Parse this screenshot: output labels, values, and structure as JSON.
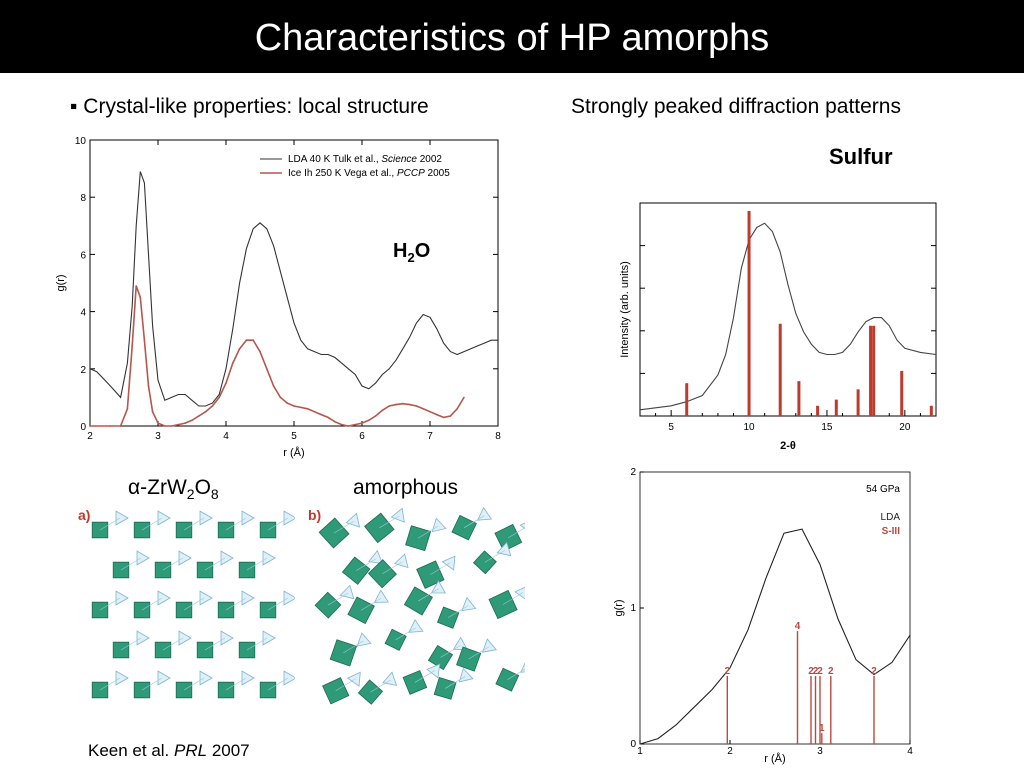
{
  "slide": {
    "title": "Characteristics of HP amorphs",
    "bullet": "▪ Crystal-like properties: local structure",
    "right_heading": "Strongly peaked diffraction patterns",
    "sulfur_label": "Sulfur",
    "h2o": {
      "main": "H",
      "sub": "2",
      "end": "O"
    },
    "zrw2o8": {
      "alpha": "α",
      "p1": "-ZrW",
      "s1": "2",
      "p2": "O",
      "s2": "8"
    },
    "amorphous": "amorphous",
    "citation": {
      "authors": "Keen et al. ",
      "journal": "PRL",
      "year": " 2007"
    },
    "panel_a": "a)",
    "panel_b": "b)"
  },
  "chart_data": [
    {
      "type": "line",
      "xlabel": "r (Å)",
      "ylabel": "g(r)",
      "xlim": [
        2,
        8
      ],
      "ylim": [
        0,
        10
      ],
      "xticks": [
        "2",
        "3",
        "4",
        "5",
        "6",
        "7",
        "8"
      ],
      "yticks": [
        "0",
        "2",
        "4",
        "6",
        "8",
        "10"
      ],
      "legend_placement": "top-right",
      "series": [
        {
          "name": "LDA 40 K Tulk et al., Science 2002",
          "legend_prefix": "LDA 40 K Tulk et al., ",
          "legend_journal": "Science",
          "legend_year": " 2002",
          "color": "#333333",
          "x": [
            2.0,
            2.1,
            2.3,
            2.45,
            2.55,
            2.62,
            2.68,
            2.74,
            2.8,
            2.86,
            2.92,
            3.0,
            3.1,
            3.2,
            3.3,
            3.4,
            3.5,
            3.6,
            3.7,
            3.8,
            3.9,
            4.0,
            4.1,
            4.2,
            4.3,
            4.4,
            4.5,
            4.6,
            4.7,
            4.8,
            4.9,
            5.0,
            5.1,
            5.2,
            5.3,
            5.4,
            5.5,
            5.6,
            5.7,
            5.8,
            5.9,
            6.0,
            6.1,
            6.2,
            6.3,
            6.4,
            6.5,
            6.6,
            6.7,
            6.8,
            6.9,
            7.0,
            7.1,
            7.2,
            7.3,
            7.4,
            7.5,
            7.6,
            7.7,
            7.8,
            7.9,
            8.0
          ],
          "y": [
            2.0,
            1.9,
            1.4,
            1.0,
            2.2,
            4.2,
            7.0,
            8.9,
            8.5,
            6.0,
            3.5,
            1.6,
            0.9,
            1.0,
            1.1,
            1.1,
            0.9,
            0.7,
            0.7,
            0.8,
            1.1,
            2.0,
            3.4,
            5.0,
            6.2,
            6.9,
            7.1,
            6.9,
            6.3,
            5.4,
            4.5,
            3.6,
            3.0,
            2.7,
            2.6,
            2.5,
            2.5,
            2.4,
            2.2,
            2.0,
            1.8,
            1.4,
            1.3,
            1.5,
            1.8,
            2.0,
            2.3,
            2.7,
            3.1,
            3.6,
            3.9,
            3.8,
            3.4,
            2.9,
            2.6,
            2.5,
            2.6,
            2.7,
            2.8,
            2.9,
            3.0,
            3.0
          ]
        },
        {
          "name": "Ice Ih 250 K Vega et al., PCCP 2005",
          "legend_prefix": "Ice Ih 250 K Vega et al., ",
          "legend_journal": "PCCP",
          "legend_year": " 2005",
          "color": "#b5574c",
          "x": [
            2.0,
            2.3,
            2.45,
            2.55,
            2.62,
            2.68,
            2.74,
            2.8,
            2.86,
            2.92,
            3.0,
            3.1,
            3.2,
            3.3,
            3.4,
            3.5,
            3.6,
            3.7,
            3.8,
            3.9,
            4.0,
            4.1,
            4.2,
            4.3,
            4.4,
            4.5,
            4.6,
            4.7,
            4.8,
            4.9,
            5.0,
            5.1,
            5.2,
            5.3,
            5.4,
            5.5,
            5.6,
            5.7,
            5.8,
            5.9,
            6.0,
            6.1,
            6.2,
            6.3,
            6.4,
            6.5,
            6.6,
            6.7,
            6.8,
            6.9,
            7.0,
            7.1,
            7.2,
            7.3,
            7.4,
            7.5
          ],
          "y": [
            0.0,
            0.0,
            0.0,
            0.6,
            2.8,
            4.9,
            4.5,
            3.0,
            1.4,
            0.5,
            0.1,
            0.0,
            0.0,
            0.05,
            0.1,
            0.2,
            0.35,
            0.5,
            0.7,
            1.0,
            1.5,
            2.2,
            2.7,
            3.0,
            3.0,
            2.6,
            2.0,
            1.4,
            1.0,
            0.8,
            0.7,
            0.65,
            0.6,
            0.5,
            0.4,
            0.3,
            0.15,
            0.05,
            0.0,
            0.05,
            0.1,
            0.2,
            0.35,
            0.55,
            0.7,
            0.75,
            0.78,
            0.75,
            0.7,
            0.6,
            0.5,
            0.4,
            0.3,
            0.35,
            0.6,
            1.0
          ]
        }
      ]
    },
    {
      "type": "line",
      "xlabel": "2-θ",
      "ylabel": "Intensity (arb. units)",
      "xlim": [
        3,
        22
      ],
      "xticks": [
        "5",
        "10",
        "15",
        "20"
      ],
      "series": [
        {
          "color": "#444444",
          "x": [
            3.0,
            4.0,
            5.0,
            6.0,
            7.0,
            8.0,
            8.5,
            9.0,
            9.5,
            10.0,
            10.5,
            11.0,
            11.5,
            12.0,
            12.5,
            13.0,
            13.5,
            14.0,
            14.5,
            15.0,
            15.5,
            16.0,
            16.5,
            17.0,
            17.5,
            18.0,
            18.5,
            19.0,
            19.5,
            20.0,
            21.0,
            22.0
          ],
          "y": [
            0.03,
            0.04,
            0.05,
            0.07,
            0.1,
            0.2,
            0.3,
            0.48,
            0.72,
            0.86,
            0.92,
            0.94,
            0.9,
            0.8,
            0.64,
            0.5,
            0.41,
            0.35,
            0.31,
            0.3,
            0.3,
            0.31,
            0.35,
            0.41,
            0.46,
            0.48,
            0.48,
            0.44,
            0.37,
            0.33,
            0.31,
            0.3
          ]
        },
        {
          "type": "stick",
          "color": "#c0392b",
          "x": [
            6.0,
            10.0,
            12.0,
            13.2,
            14.4,
            15.6,
            17.0,
            17.8,
            18.0,
            19.8,
            21.7
          ],
          "y": [
            0.16,
            1.0,
            0.45,
            0.17,
            0.05,
            0.08,
            0.13,
            0.44,
            0.44,
            0.22,
            0.05
          ]
        }
      ]
    },
    {
      "type": "line",
      "xlabel": "r (Å)",
      "ylabel": "g(r)",
      "xlim": [
        1,
        4
      ],
      "ylim": [
        0,
        2
      ],
      "xticks": [
        "1",
        "2",
        "3",
        "4"
      ],
      "yticks": [
        "0",
        "1",
        "2"
      ],
      "annotation": "54 GPa",
      "legend_placement": "top-right",
      "series": [
        {
          "name": "LDA",
          "color": "#222222",
          "x": [
            1.0,
            1.2,
            1.4,
            1.6,
            1.8,
            2.0,
            2.2,
            2.4,
            2.6,
            2.8,
            3.0,
            3.2,
            3.4,
            3.6,
            3.8,
            4.0
          ],
          "y": [
            0.0,
            0.04,
            0.14,
            0.27,
            0.4,
            0.56,
            0.84,
            1.22,
            1.55,
            1.58,
            1.32,
            0.92,
            0.62,
            0.51,
            0.6,
            0.8
          ]
        },
        {
          "name": "S-III",
          "type": "stick",
          "color": "#b84b3f",
          "x": [
            1.97,
            2.75,
            2.9,
            2.95,
            3.0,
            3.02,
            3.12,
            3.6
          ],
          "y": [
            0.5,
            0.83,
            0.5,
            0.5,
            0.5,
            0.08,
            0.5,
            0.5
          ],
          "labels": [
            "2",
            "4",
            "2",
            "2",
            "2",
            "1",
            "2",
            "2"
          ]
        }
      ]
    }
  ]
}
